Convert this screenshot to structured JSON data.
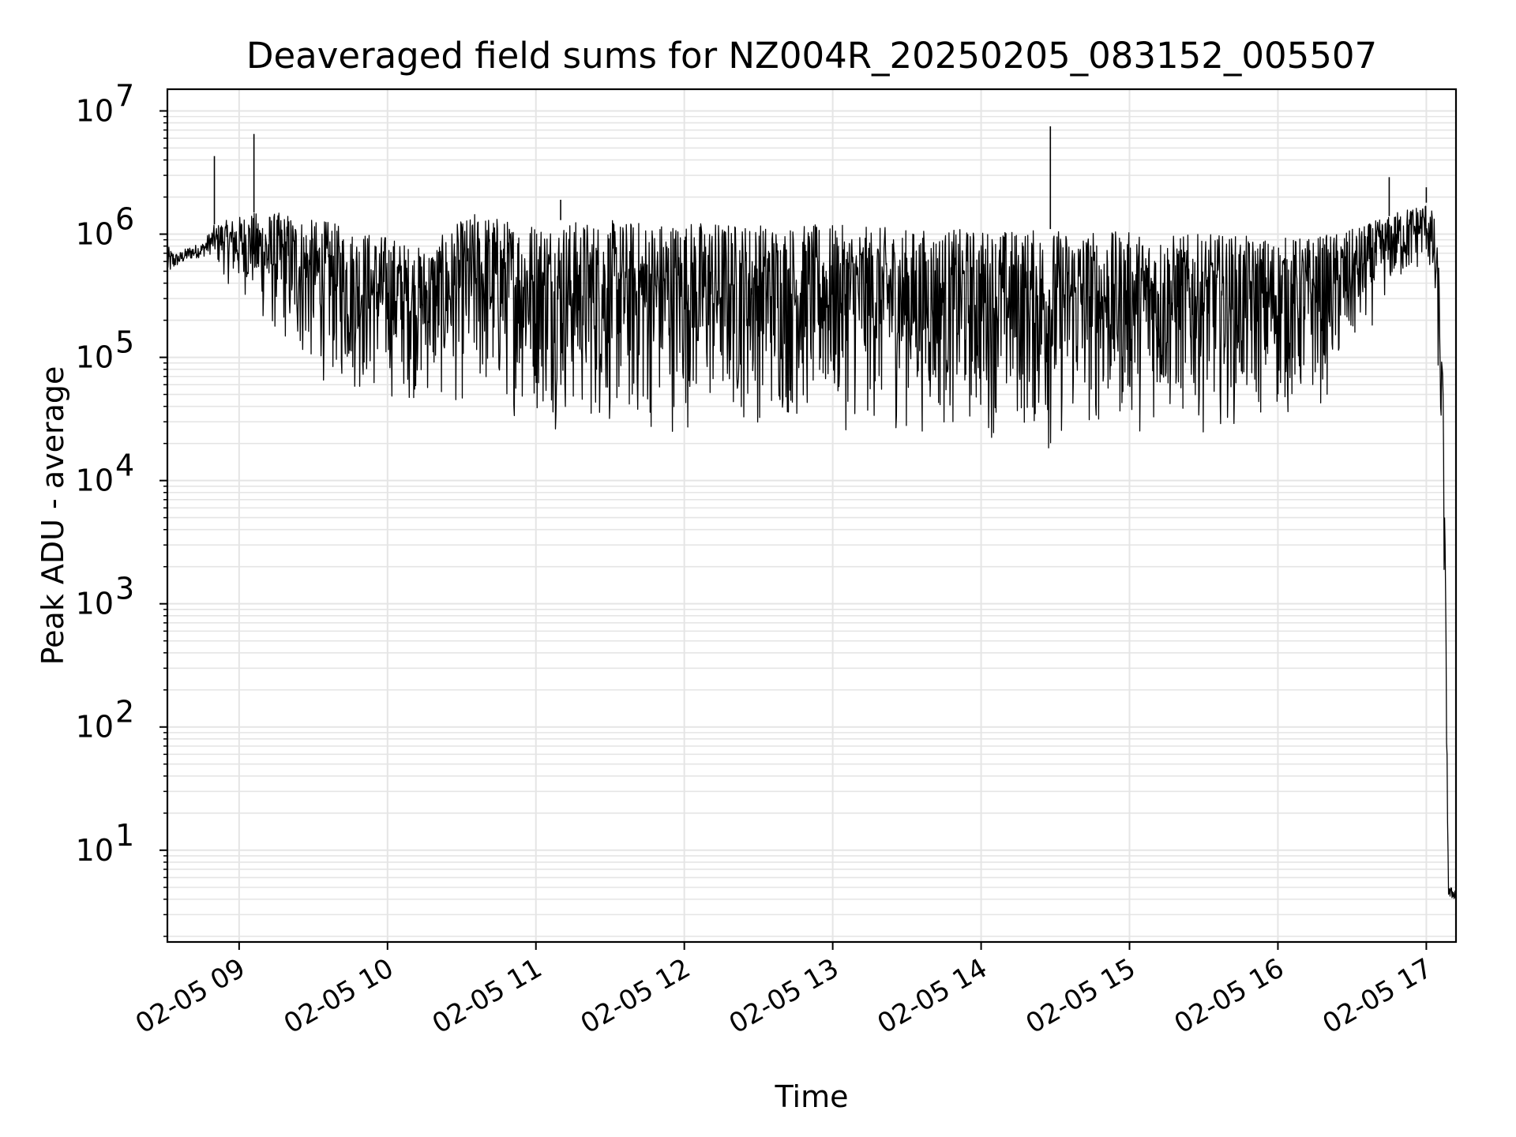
{
  "chart_data": {
    "type": "line",
    "title": "Deaveraged field sums for NZ004R_20250205_083152_005507",
    "xlabel": "Time",
    "ylabel": "Peak ADU - average",
    "y_scale": "log",
    "ylim": [
      1.8,
      15000000
    ],
    "xlim": [
      "2025-02-05 08:31",
      "2025-02-05 17:12"
    ],
    "grid": true,
    "line_color": "#000000",
    "grid_color": "#e5e5e5",
    "x_ticks": [
      "02-05 09",
      "02-05 10",
      "02-05 11",
      "02-05 12",
      "02-05 13",
      "02-05 14",
      "02-05 15",
      "02-05 16",
      "02-05 17"
    ],
    "y_ticks": [
      {
        "base": "10",
        "exp": "1"
      },
      {
        "base": "10",
        "exp": "2"
      },
      {
        "base": "10",
        "exp": "3"
      },
      {
        "base": "10",
        "exp": "4"
      },
      {
        "base": "10",
        "exp": "5"
      },
      {
        "base": "10",
        "exp": "6"
      },
      {
        "base": "10",
        "exp": "7"
      }
    ],
    "series": [
      {
        "name": "",
        "x": [
          "08:31",
          "08:35",
          "08:40",
          "08:45",
          "08:50",
          "08:55",
          "09:00",
          "09:05",
          "09:10",
          "09:15",
          "09:20",
          "09:25",
          "09:30",
          "09:35",
          "09:40",
          "09:45",
          "09:50",
          "09:55",
          "10:00",
          "10:05",
          "10:10",
          "10:15",
          "10:20",
          "10:25",
          "10:30",
          "10:35",
          "10:40",
          "10:45",
          "10:50",
          "10:55",
          "11:00",
          "11:05",
          "11:10",
          "11:15",
          "11:20",
          "11:25",
          "11:30",
          "11:35",
          "11:40",
          "11:45",
          "11:50",
          "11:55",
          "12:00",
          "12:10",
          "12:20",
          "12:30",
          "12:40",
          "12:50",
          "13:00",
          "13:10",
          "13:20",
          "13:30",
          "13:40",
          "13:50",
          "14:00",
          "14:10",
          "14:20",
          "14:28",
          "14:35",
          "14:40",
          "14:50",
          "15:00",
          "15:10",
          "15:20",
          "15:30",
          "15:40",
          "15:50",
          "16:00",
          "16:10",
          "16:20",
          "16:30",
          "16:40",
          "16:45",
          "16:50",
          "16:55",
          "17:00",
          "17:03",
          "17:05",
          "17:07",
          "17:09",
          "17:10",
          "17:12"
        ],
        "lower": [
          450000,
          550000,
          620000,
          650000,
          700000,
          380000,
          300000,
          280000,
          150000,
          120000,
          100000,
          70000,
          60000,
          55000,
          50000,
          45000,
          40000,
          38000,
          40000,
          38000,
          40000,
          38000,
          36000,
          35000,
          34000,
          32000,
          32000,
          31000,
          30000,
          29000,
          28000,
          25000,
          24000,
          23000,
          22000,
          22000,
          21000,
          20000,
          19000,
          20000,
          21000,
          22000,
          23000,
          24000,
          25000,
          25000,
          24000,
          24000,
          23000,
          23000,
          22000,
          22000,
          21000,
          21000,
          20000,
          20000,
          19000,
          12000,
          19000,
          20000,
          21000,
          22000,
          23000,
          23000,
          24000,
          25000,
          25000,
          26000,
          28000,
          40000,
          80000,
          200000,
          300000,
          350000,
          400000,
          600000,
          200000,
          50000,
          1500,
          4,
          4,
          4
        ],
        "upper": [
          800000,
          700000,
          800000,
          850000,
          1200000,
          1300000,
          1400000,
          1500000,
          1500000,
          1500000,
          1500000,
          1400000,
          1300000,
          1300000,
          1200000,
          1100000,
          1100000,
          1000000,
          1000000,
          900000,
          800000,
          800000,
          900000,
          1100000,
          1300000,
          1500000,
          1500000,
          1400000,
          1300000,
          1300000,
          1300000,
          1300000,
          1300000,
          1300000,
          1300000,
          1300000,
          1300000,
          1300000,
          1300000,
          1300000,
          1300000,
          1300000,
          1300000,
          1300000,
          1250000,
          1250000,
          1200000,
          1200000,
          1200000,
          1150000,
          1150000,
          1100000,
          1100000,
          1100000,
          1100000,
          1100000,
          1100000,
          1100000,
          1100000,
          1100000,
          1050000,
          1050000,
          1000000,
          1000000,
          1000000,
          1000000,
          950000,
          950000,
          950000,
          1000000,
          1100000,
          1300000,
          1400000,
          1600000,
          1700000,
          1800000,
          1500000,
          600000,
          50000,
          5,
          5,
          5
        ],
        "spikes": [
          {
            "t": "08:50",
            "v": 4300000
          },
          {
            "t": "09:06",
            "v": 6500000
          },
          {
            "t": "11:10",
            "v": 1900000
          },
          {
            "t": "14:28",
            "v": 7500000
          },
          {
            "t": "16:45",
            "v": 2900000
          },
          {
            "t": "17:00",
            "v": 2400000
          }
        ]
      }
    ]
  }
}
